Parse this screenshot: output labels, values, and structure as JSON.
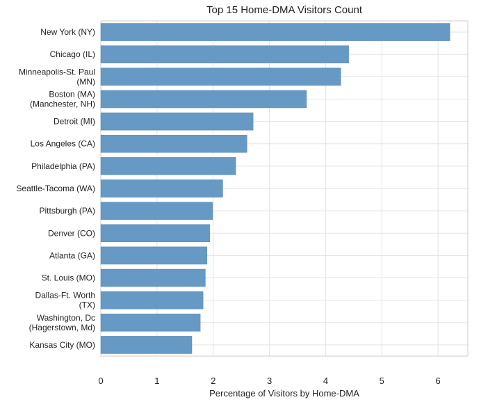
{
  "chart_data": {
    "type": "bar",
    "orientation": "horizontal",
    "title": "Top 15 Home-DMA Visitors Count",
    "xlabel": "Percentage of Visitors by Home-DMA",
    "categories": [
      "New York (NY)",
      "Chicago (IL)",
      "Minneapolis-St. Paul\n(MN)",
      "Boston (MA)\n(Manchester, NH)",
      "Detroit (MI)",
      "Los Angeles (CA)",
      "Philadelphia (PA)",
      "Seattle-Tacoma (WA)",
      "Pittsburgh (PA)",
      "Denver (CO)",
      "Atlanta (GA)",
      "St. Louis (MO)",
      "Dallas-Ft. Worth\n(TX)",
      "Washington, Dc\n(Hagerstown, Md)",
      "Kansas City (MO)"
    ],
    "values": [
      6.21,
      4.41,
      4.27,
      3.66,
      2.71,
      2.6,
      2.4,
      2.17,
      1.99,
      1.94,
      1.89,
      1.86,
      1.82,
      1.77,
      1.62
    ],
    "color": "#6699c4",
    "xlim": [
      0,
      6.53
    ],
    "xticks": [
      0,
      1,
      2,
      3,
      4,
      5,
      6
    ],
    "grid": true
  }
}
